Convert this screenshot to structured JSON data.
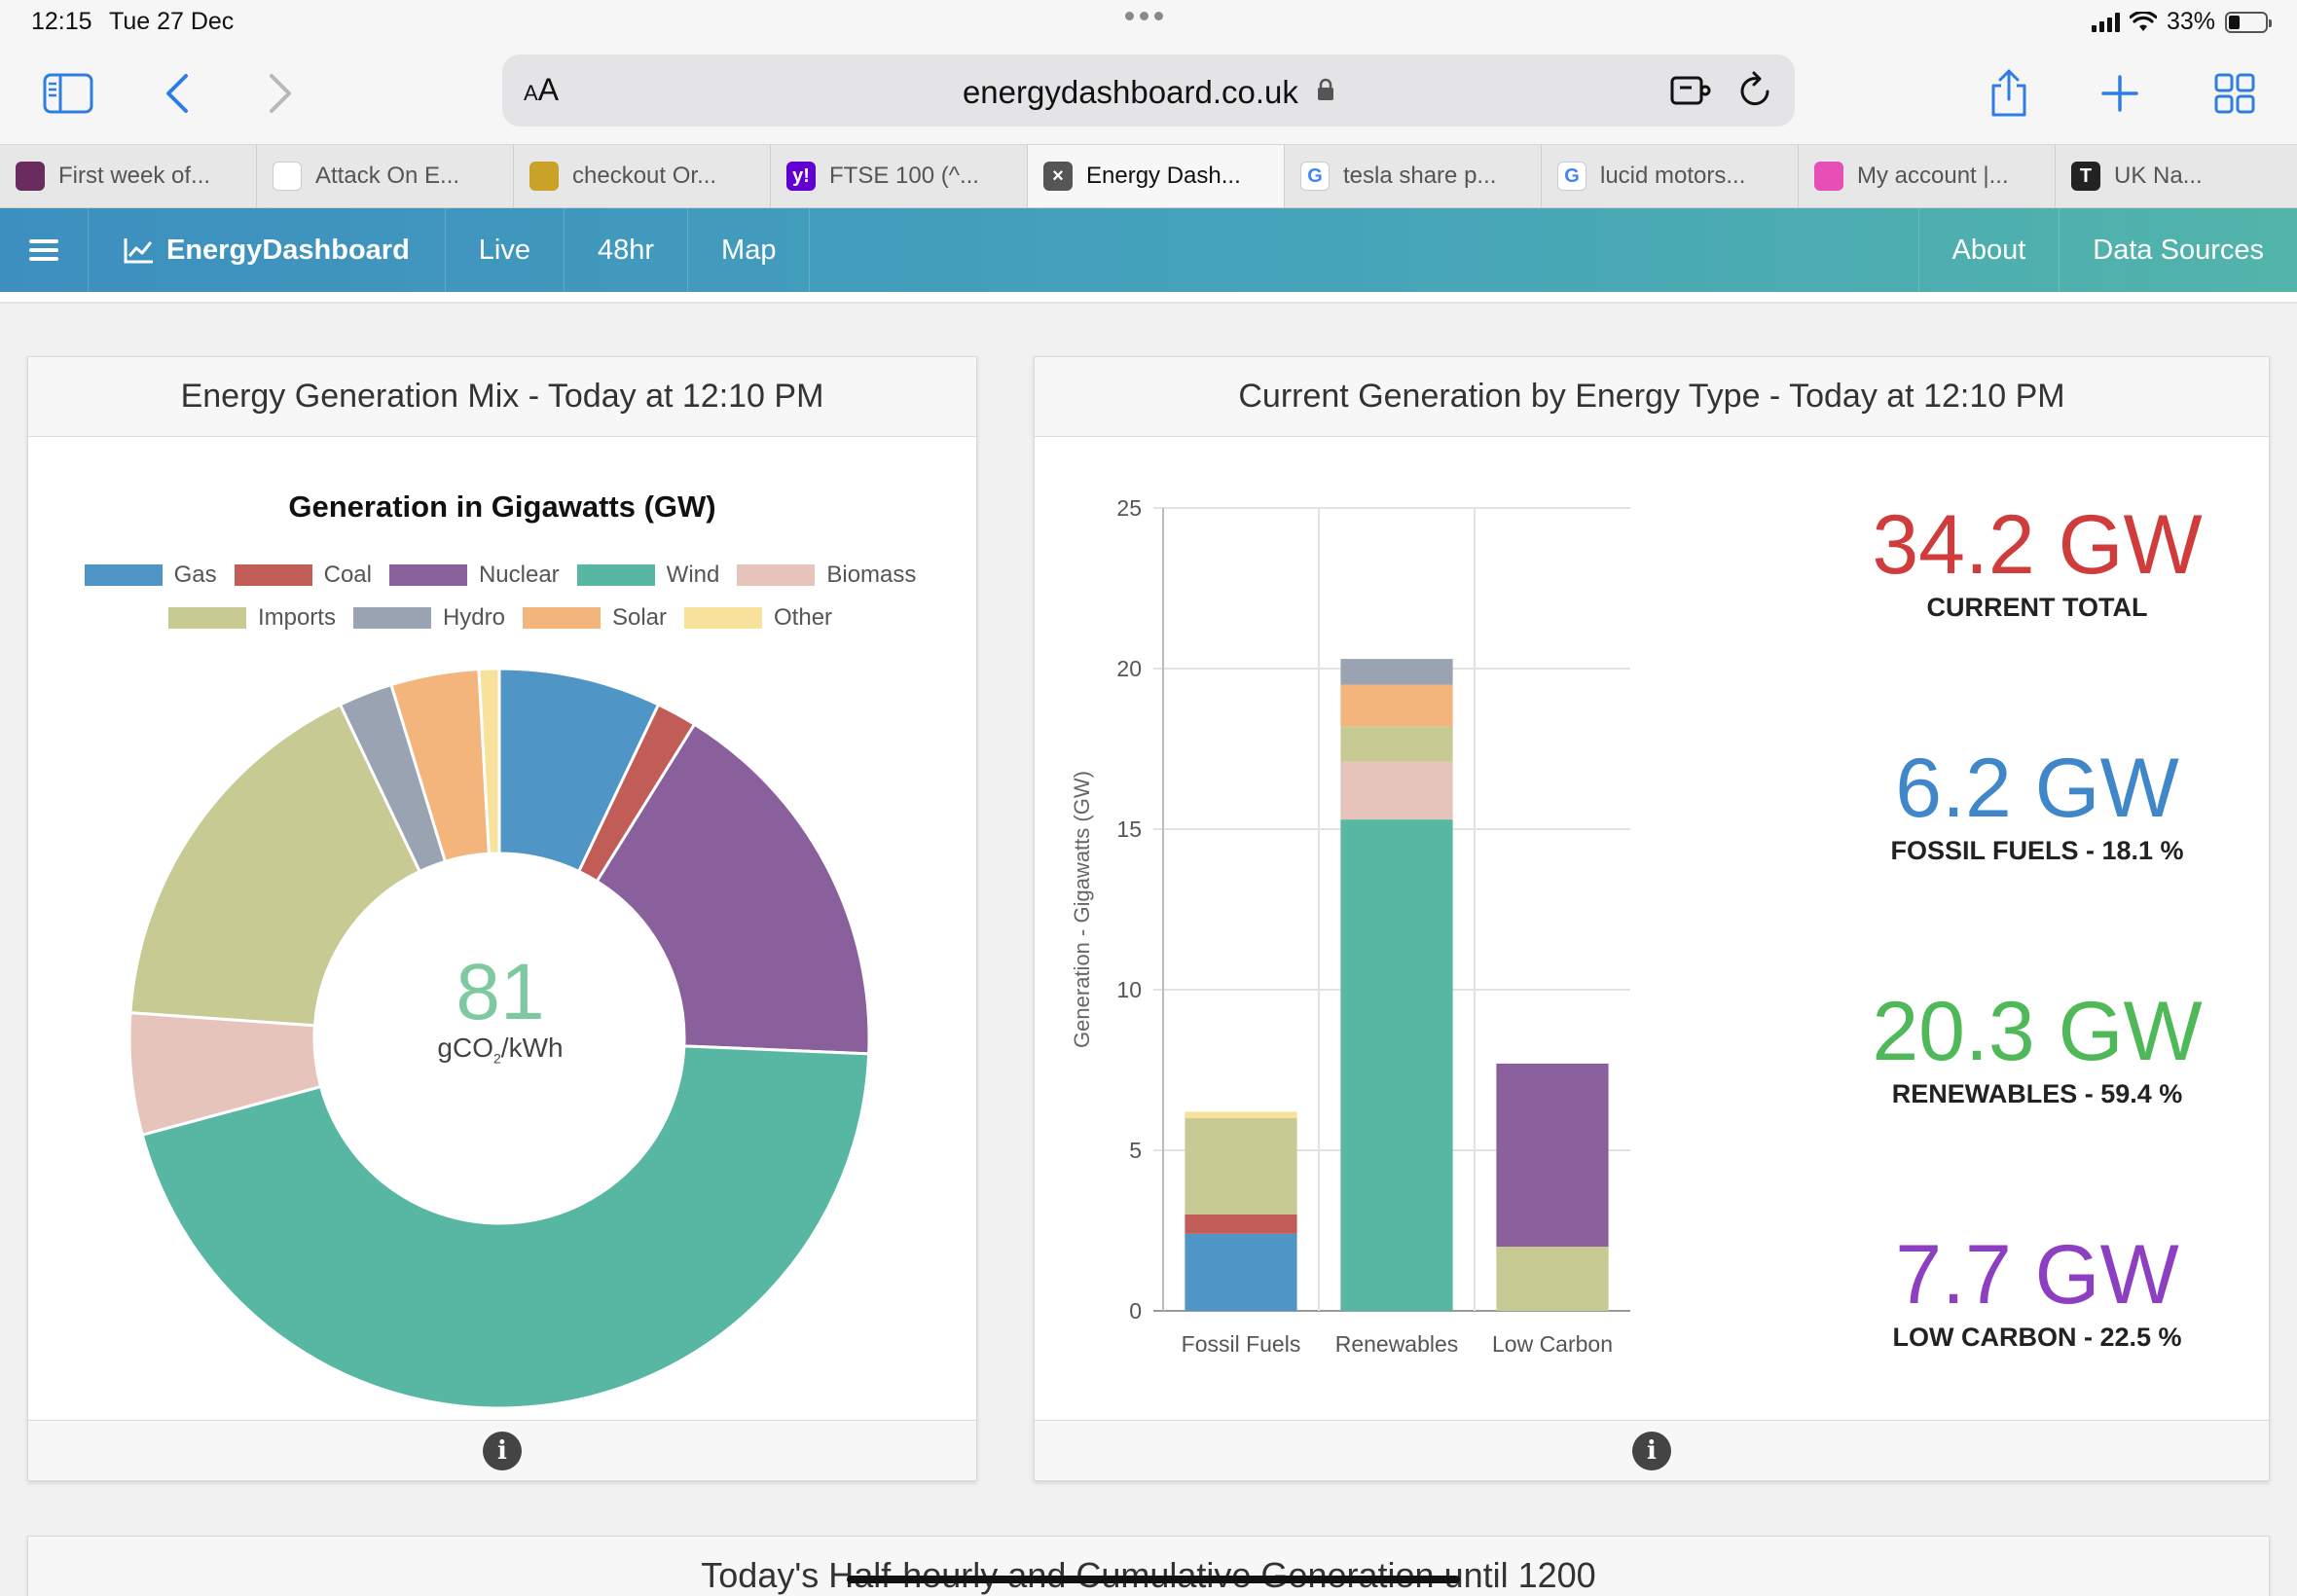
{
  "status": {
    "time": "12:15",
    "date": "Tue 27 Dec",
    "battery": "33%"
  },
  "browser": {
    "url": "energydashboard.co.uk",
    "aa_label": "A",
    "aa_small": "A",
    "tabs": [
      {
        "label": "First week of...",
        "favicon_color": "#6a2c5f",
        "favicon_text": ""
      },
      {
        "label": "Attack On E...",
        "favicon_color": "#ffffff",
        "favicon_text": ""
      },
      {
        "label": "checkout Or...",
        "favicon_color": "#c9a227",
        "favicon_text": ""
      },
      {
        "label": "FTSE 100 (^...",
        "favicon_color": "#6001d2",
        "favicon_text": "y!"
      },
      {
        "label": "Energy Dash...",
        "favicon_color": "#555555",
        "favicon_text": "×"
      },
      {
        "label": "tesla share p...",
        "favicon_color": "#ffffff",
        "favicon_text": "G"
      },
      {
        "label": "lucid motors...",
        "favicon_color": "#ffffff",
        "favicon_text": "G"
      },
      {
        "label": "My account |...",
        "favicon_color": "#e64fb5",
        "favicon_text": ""
      },
      {
        "label": "UK Na...",
        "favicon_color": "#222222",
        "favicon_text": "T"
      }
    ],
    "active_tab_index": 4
  },
  "nav": {
    "brand": "EnergyDashboard",
    "items": [
      "Live",
      "48hr",
      "Map"
    ],
    "right_items": [
      "About",
      "Data Sources"
    ]
  },
  "mix_panel": {
    "title": "Energy Generation Mix - Today at 12:10 PM",
    "co2_value": "81",
    "co2_unit_prefix": "gCO",
    "co2_unit_sub": "2",
    "co2_unit_suffix": "/kWh"
  },
  "type_panel": {
    "title": "Current Generation by Energy Type - Today at 12:10 PM",
    "stats": [
      {
        "value": "34.2 GW",
        "label": "CURRENT TOTAL",
        "color": "#d03b3b"
      },
      {
        "value": "6.2 GW",
        "label": "FOSSIL FUELS - 18.1 %",
        "color": "#3f87c9"
      },
      {
        "value": "20.3 GW",
        "label": "RENEWABLES - 59.4 %",
        "color": "#4fb858"
      },
      {
        "value": "7.7 GW",
        "label": "LOW CARBON - 22.5 %",
        "color": "#8d3fc1"
      }
    ]
  },
  "bottom_panel": {
    "title_start": "Today's Ha",
    "title_mid": "lf-hourly and Cumulative Generation",
    "title_end": " until 1200"
  },
  "chart_data": [
    {
      "type": "pie",
      "title": "Generation in Gigawatts (GW)",
      "legend": [
        {
          "name": "Gas",
          "color": "#4f95c6"
        },
        {
          "name": "Coal",
          "color": "#c25c56"
        },
        {
          "name": "Nuclear",
          "color": "#8a609c"
        },
        {
          "name": "Wind",
          "color": "#58b7a2"
        },
        {
          "name": "Biomass",
          "color": "#e6c4bb"
        },
        {
          "name": "Imports",
          "color": "#c8ca93"
        },
        {
          "name": "Hydro",
          "color": "#9aa3b1"
        },
        {
          "name": "Solar",
          "color": "#f3b57b"
        },
        {
          "name": "Other",
          "color": "#f8e19a"
        }
      ],
      "slices": [
        {
          "name": "Gas",
          "value": 2.4
        },
        {
          "name": "Coal",
          "value": 0.6
        },
        {
          "name": "Nuclear",
          "value": 5.7
        },
        {
          "name": "Wind",
          "value": 15.3
        },
        {
          "name": "Biomass",
          "value": 1.8
        },
        {
          "name": "Imports",
          "value": 5.7
        },
        {
          "name": "Hydro",
          "value": 0.8
        },
        {
          "name": "Solar",
          "value": 1.3
        },
        {
          "name": "Other",
          "value": 0.3
        }
      ],
      "center_label": "81 gCO2/kWh"
    },
    {
      "type": "bar",
      "stacked": true,
      "categories": [
        "Fossil Fuels",
        "Renewables",
        "Low Carbon"
      ],
      "ylabel": "Generation - Gigawatts (GW)",
      "ylim": [
        0,
        25
      ],
      "yticks": [
        0,
        5,
        10,
        15,
        20,
        25
      ],
      "grid": true,
      "series": [
        {
          "name": "Gas",
          "color": "#4f95c6",
          "values": [
            2.4,
            0,
            0
          ]
        },
        {
          "name": "Coal",
          "color": "#c25c56",
          "values": [
            0.6,
            0,
            0
          ]
        },
        {
          "name": "Imports",
          "color": "#c8ca93",
          "values": [
            3.0,
            0,
            2.0
          ]
        },
        {
          "name": "Other",
          "color": "#f8e19a",
          "values": [
            0.2,
            0,
            0
          ]
        },
        {
          "name": "Wind",
          "color": "#58b7a2",
          "values": [
            0,
            15.3,
            0
          ]
        },
        {
          "name": "Biomass",
          "color": "#e6c4bb",
          "values": [
            0,
            1.8,
            0
          ]
        },
        {
          "name": "Imports",
          "color": "#c8ca93",
          "values": [
            0,
            1.1,
            0
          ]
        },
        {
          "name": "Solar",
          "color": "#f3b57b",
          "values": [
            0,
            1.3,
            0
          ]
        },
        {
          "name": "Hydro",
          "color": "#9aa3b1",
          "values": [
            0,
            0.8,
            0
          ]
        },
        {
          "name": "Nuclear",
          "color": "#8a609c",
          "values": [
            0,
            0,
            5.7
          ]
        }
      ]
    }
  ]
}
